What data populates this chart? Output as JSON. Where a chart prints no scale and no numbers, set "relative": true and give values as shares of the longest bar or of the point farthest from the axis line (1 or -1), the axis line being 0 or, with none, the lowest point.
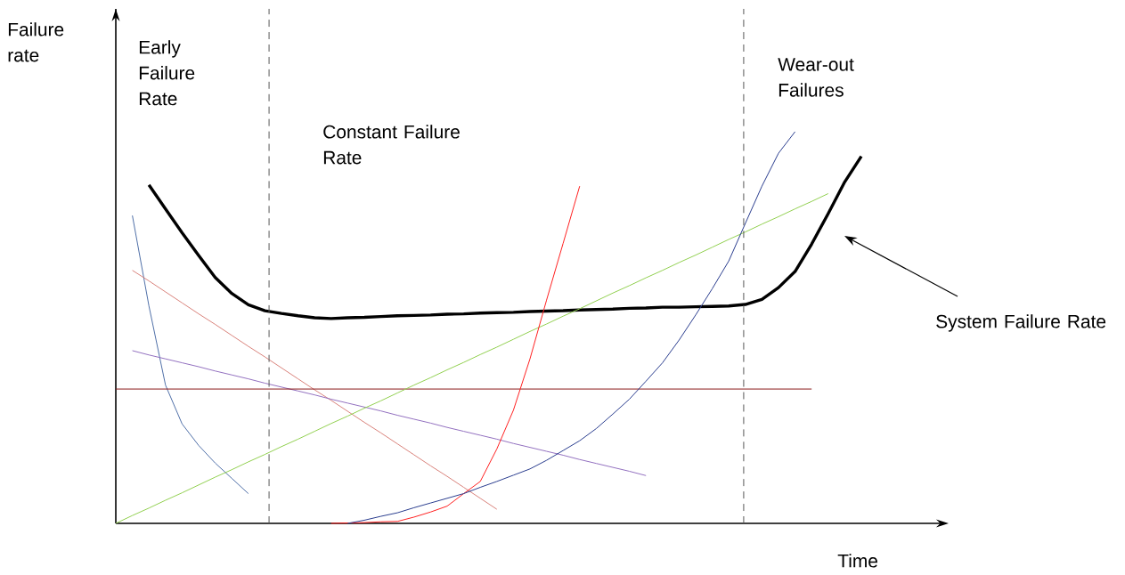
{
  "chart_data": {
    "type": "line",
    "relative": true,
    "xlabel": "Time",
    "ylabel": "Failure rate",
    "categories": [
      null,
      null,
      null,
      null,
      null,
      null,
      null,
      null,
      null,
      null,
      null,
      null,
      null,
      null,
      null,
      null,
      null,
      null,
      null,
      null,
      null,
      null,
      null,
      null,
      null,
      null,
      null,
      null,
      null,
      null,
      null,
      null,
      null,
      null,
      null,
      null,
      null,
      null,
      null,
      null,
      null,
      null,
      null,
      null,
      null,
      null,
      null
    ],
    "annotations": [
      "Early Failure Rate",
      "Constant Failure Rate",
      "Wear-out Failures",
      "System Failure Rate"
    ],
    "series": [
      {
        "color": "#000000",
        "values": [
          null,
          null,
          0.864,
          0.803,
          0.742,
          0.684,
          0.628,
          0.587,
          0.558,
          0.543,
          0.536,
          0.53,
          0.525,
          0.523,
          0.525,
          0.526,
          0.528,
          0.53,
          0.531,
          0.532,
          0.534,
          0.535,
          0.537,
          0.538,
          0.539,
          0.541,
          0.542,
          0.543,
          0.545,
          0.546,
          0.547,
          0.549,
          0.55,
          0.552,
          0.552,
          0.553,
          0.554,
          0.555,
          0.559,
          0.572,
          0.602,
          0.643,
          0.713,
          0.791,
          0.872,
          0.937,
          null
        ]
      },
      {
        "color": "#4f6fa8",
        "values": [
          null,
          0.786,
          0.555,
          0.353,
          0.254,
          0.199,
          0.154,
          0.115,
          0.076,
          null,
          null,
          null,
          null,
          null,
          null,
          null,
          null,
          null,
          null,
          null,
          null,
          null,
          null,
          null,
          null,
          null,
          null,
          null,
          null,
          null,
          null,
          null,
          null,
          null,
          null,
          null,
          null,
          null,
          null,
          null,
          null,
          null,
          null,
          null,
          null,
          null,
          null
        ]
      },
      {
        "color": "#d9827a",
        "values": [
          null,
          0.646,
          0.619,
          0.591,
          0.563,
          0.535,
          0.508,
          0.48,
          0.452,
          0.425,
          0.397,
          0.369,
          0.341,
          0.314,
          0.286,
          0.258,
          0.231,
          0.203,
          0.175,
          0.147,
          0.12,
          0.092,
          0.064,
          0.036,
          null,
          null,
          null,
          null,
          null,
          null,
          null,
          null,
          null,
          null,
          null,
          null,
          null,
          null,
          null,
          null,
          null,
          null,
          null,
          null,
          null,
          null,
          null
        ]
      },
      {
        "color": "#9370c0",
        "values": [
          null,
          0.441,
          0.43,
          0.42,
          0.41,
          0.4,
          0.389,
          0.379,
          0.369,
          0.358,
          0.348,
          0.338,
          0.328,
          0.317,
          0.307,
          0.297,
          0.287,
          0.276,
          0.266,
          0.256,
          0.245,
          0.235,
          0.225,
          0.215,
          0.204,
          0.194,
          0.184,
          0.174,
          0.163,
          0.153,
          0.143,
          0.133,
          0.122,
          null,
          null,
          null,
          null,
          null,
          null,
          null,
          null,
          null,
          null,
          null,
          null,
          null,
          null
        ]
      },
      {
        "color": "#8b1a1a",
        "values": [
          0.343,
          0.343,
          0.343,
          0.343,
          0.343,
          0.343,
          0.343,
          0.343,
          0.343,
          0.343,
          0.343,
          0.343,
          0.343,
          0.343,
          0.343,
          0.343,
          0.343,
          0.343,
          0.343,
          0.343,
          0.343,
          0.343,
          0.343,
          0.343,
          0.343,
          0.343,
          0.343,
          0.343,
          0.343,
          0.343,
          0.343,
          0.343,
          0.343,
          0.343,
          0.343,
          0.343,
          0.343,
          0.343,
          0.343,
          0.343,
          0.343,
          0.343,
          0.343,
          null,
          null,
          null,
          null
        ]
      },
      {
        "color": "#92d050",
        "values": [
          0.0,
          0.02,
          0.039,
          0.059,
          0.078,
          0.098,
          0.118,
          0.137,
          0.157,
          0.176,
          0.196,
          0.215,
          0.235,
          0.255,
          0.274,
          0.294,
          0.313,
          0.333,
          0.353,
          0.372,
          0.392,
          0.411,
          0.431,
          0.45,
          0.47,
          0.49,
          0.509,
          0.529,
          0.548,
          0.568,
          0.588,
          0.607,
          0.627,
          0.646,
          0.666,
          0.685,
          0.705,
          0.725,
          0.744,
          0.764,
          0.783,
          0.803,
          0.822,
          0.842,
          null,
          null,
          null
        ]
      },
      {
        "color": "#ff2020",
        "values": [
          null,
          null,
          null,
          null,
          null,
          null,
          null,
          null,
          null,
          null,
          null,
          null,
          null,
          0.0,
          0.001,
          0.002,
          0.004,
          0.005,
          0.016,
          0.029,
          0.044,
          0.076,
          0.107,
          0.19,
          0.289,
          0.42,
          0.57,
          0.715,
          0.861,
          null,
          null,
          null,
          null,
          null,
          null,
          null,
          null,
          null,
          null,
          null,
          null,
          null,
          null,
          null,
          null,
          null,
          null
        ]
      },
      {
        "color": "#2a3d8f",
        "values": [
          null,
          null,
          null,
          null,
          null,
          null,
          null,
          null,
          null,
          null,
          null,
          null,
          null,
          null,
          0.0,
          0.008,
          0.018,
          0.027,
          0.04,
          0.052,
          0.064,
          0.076,
          0.092,
          0.107,
          0.123,
          0.139,
          0.161,
          0.186,
          0.211,
          0.242,
          0.279,
          0.317,
          0.363,
          0.41,
          0.468,
          0.532,
          0.599,
          0.67,
          0.766,
          0.861,
          0.945,
          1.0,
          null,
          null,
          null,
          null,
          null
        ]
      }
    ]
  }
}
